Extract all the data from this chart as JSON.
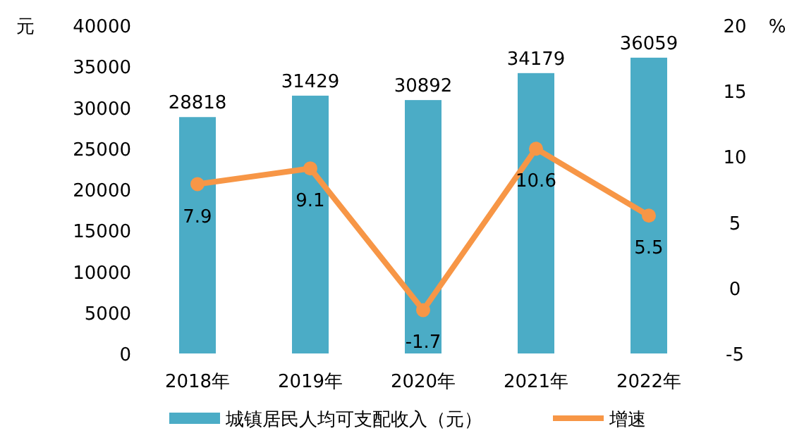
{
  "chart_data": {
    "type": "bar",
    "ylabel": "元",
    "y2label": "%",
    "categories": [
      "2018年",
      "2019年",
      "2020年",
      "2021年",
      "2022年"
    ],
    "series": [
      {
        "name": "城镇居民人均可支配收入（元）",
        "color": "#4bacc6",
        "values": [
          28818,
          31429,
          30892,
          34179,
          36059
        ]
      },
      {
        "name": "增速",
        "type": "line",
        "axis": "y2",
        "color": "#f79646",
        "marker": "circle",
        "line_style": "solid",
        "values": [
          7.9,
          9.1,
          -1.7,
          10.6,
          5.5
        ]
      }
    ],
    "ylim": [
      0,
      40000
    ],
    "yticks": [
      0,
      5000,
      10000,
      15000,
      20000,
      25000,
      30000,
      35000,
      40000
    ],
    "y2lim": [
      -5,
      20
    ],
    "y2ticks": [
      -5,
      0,
      5,
      10,
      15,
      20
    ],
    "data_labels": true,
    "legend": "bottom",
    "grid": false
  }
}
